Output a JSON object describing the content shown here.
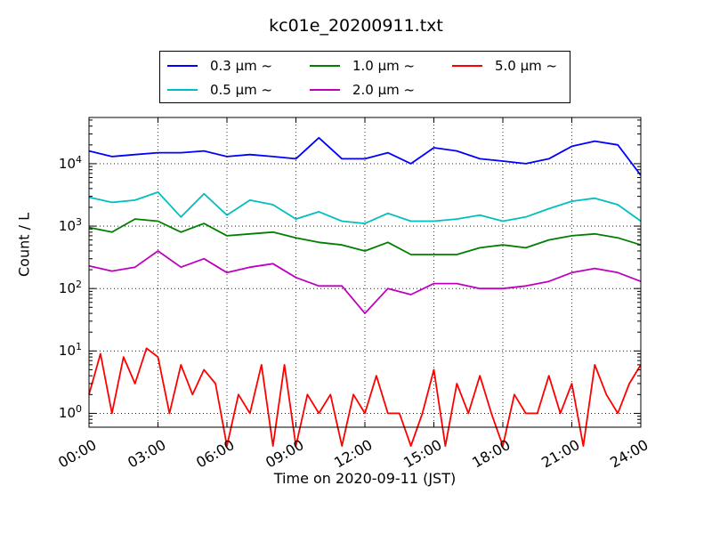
{
  "chart_data": {
    "type": "line",
    "title": "kc01e_20200911.txt",
    "xlabel": "Time on 2020-09-11 (JST)",
    "ylabel": "Count / L",
    "x_ticks": [
      "00:00",
      "03:00",
      "06:00",
      "09:00",
      "12:00",
      "15:00",
      "18:00",
      "21:00",
      "24:00"
    ],
    "xlim_hours": [
      0,
      24
    ],
    "y_scale": "log",
    "ylim": [
      0.6,
      55000
    ],
    "y_ticks": [
      {
        "value": 1,
        "base": "10",
        "exp": "0"
      },
      {
        "value": 10,
        "base": "10",
        "exp": "1"
      },
      {
        "value": 100,
        "base": "10",
        "exp": "2"
      },
      {
        "value": 1000,
        "base": "10",
        "exp": "3"
      },
      {
        "value": 10000,
        "base": "10",
        "exp": "4"
      }
    ],
    "grid": true,
    "legend_position": "top-center",
    "series": [
      {
        "name": "0.3 μm ~",
        "color": "#0000ff",
        "x_hours": [
          0,
          1,
          2,
          3,
          4,
          5,
          6,
          7,
          8,
          9,
          10,
          11,
          12,
          13,
          14,
          15,
          16,
          17,
          18,
          19,
          20,
          21,
          22,
          23,
          24
        ],
        "values": [
          16000,
          13000,
          14000,
          15000,
          15000,
          16000,
          13000,
          14000,
          13000,
          12000,
          26000,
          12000,
          12000,
          15000,
          10000,
          18000,
          16000,
          12000,
          11000,
          10000,
          12000,
          19000,
          23000,
          20000,
          6500
        ]
      },
      {
        "name": "0.5 μm ~",
        "color": "#00bfbf",
        "x_hours": [
          0,
          1,
          2,
          3,
          4,
          5,
          6,
          7,
          8,
          9,
          10,
          11,
          12,
          13,
          14,
          15,
          16,
          17,
          18,
          19,
          20,
          21,
          22,
          23,
          24
        ],
        "values": [
          2900,
          2400,
          2600,
          3500,
          1400,
          3300,
          1500,
          2600,
          2200,
          1300,
          1700,
          1200,
          1100,
          1600,
          1200,
          1200,
          1300,
          1500,
          1200,
          1400,
          1900,
          2500,
          2800,
          2200,
          1200
        ]
      },
      {
        "name": "1.0 μm ~",
        "color": "#007f00",
        "x_hours": [
          0,
          1,
          2,
          3,
          4,
          5,
          6,
          7,
          8,
          9,
          10,
          11,
          12,
          13,
          14,
          15,
          16,
          17,
          18,
          19,
          20,
          21,
          22,
          23,
          24
        ],
        "values": [
          950,
          800,
          1300,
          1200,
          800,
          1100,
          700,
          750,
          800,
          650,
          550,
          500,
          400,
          550,
          350,
          350,
          350,
          450,
          500,
          450,
          600,
          700,
          750,
          650,
          500
        ]
      },
      {
        "name": "2.0 μm ~",
        "color": "#bf00bf",
        "x_hours": [
          0,
          1,
          2,
          3,
          4,
          5,
          6,
          7,
          8,
          9,
          10,
          11,
          12,
          13,
          14,
          15,
          16,
          17,
          18,
          19,
          20,
          21,
          22,
          23,
          24
        ],
        "values": [
          230,
          190,
          220,
          400,
          220,
          300,
          180,
          220,
          250,
          150,
          110,
          110,
          40,
          100,
          80,
          120,
          120,
          100,
          100,
          110,
          130,
          180,
          210,
          180,
          130
        ]
      },
      {
        "name": "5.0 μm ~",
        "color": "#ff0000",
        "x_hours": [
          0,
          0.5,
          1,
          1.5,
          2,
          2.5,
          3,
          3.5,
          4,
          4.5,
          5,
          5.5,
          6,
          6.5,
          7,
          7.5,
          8,
          8.5,
          9,
          9.5,
          10,
          10.5,
          11,
          11.5,
          12,
          12.5,
          13,
          13.5,
          14,
          14.5,
          15,
          15.5,
          16,
          16.5,
          17,
          17.5,
          18,
          18.5,
          19,
          19.5,
          20,
          20.5,
          21,
          21.5,
          22,
          22.5,
          23,
          23.5,
          24
        ],
        "values": [
          2,
          9,
          1,
          8,
          3,
          11,
          8,
          1,
          6,
          2,
          5,
          3,
          0,
          2,
          1,
          6,
          0,
          6,
          0,
          2,
          1,
          2,
          0,
          2,
          1,
          4,
          1,
          1,
          0,
          1,
          5,
          0,
          3,
          1,
          4,
          1,
          0,
          2,
          1,
          1,
          4,
          1,
          3,
          0,
          6,
          2,
          1,
          3,
          6
        ]
      }
    ]
  }
}
